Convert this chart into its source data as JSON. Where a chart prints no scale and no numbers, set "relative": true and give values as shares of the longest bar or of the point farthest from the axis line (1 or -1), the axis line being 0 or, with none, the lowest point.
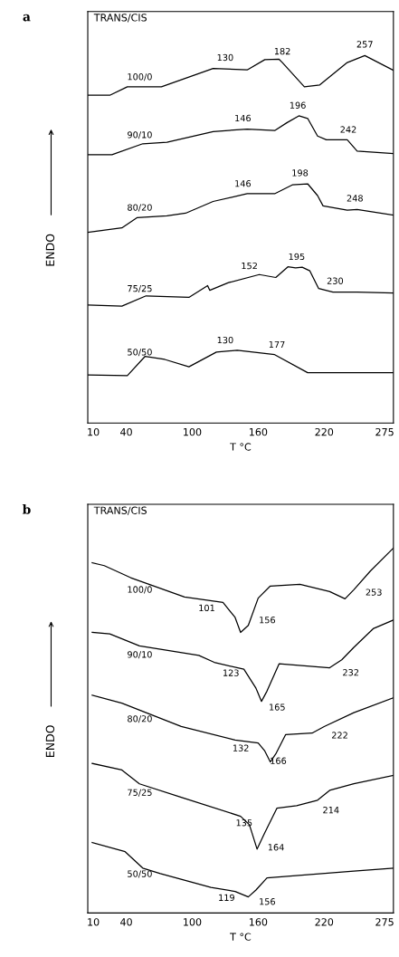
{
  "chart_data": [
    {
      "type": "line",
      "title": "a",
      "xlabel": "T °C",
      "ylabel": "ENDO",
      "relative": true,
      "legend": false,
      "grid": false,
      "xlim": [
        5,
        283
      ],
      "xticks": [
        10,
        40,
        100,
        160,
        220,
        275
      ],
      "series": [
        {
          "name": "100/0",
          "color": "#000000",
          "x": [
            5,
            25,
            41,
            72,
            119,
            150,
            166,
            179,
            182,
            202,
            216,
            241,
            257,
            283
          ],
          "values": [
            0.892,
            0.892,
            0.915,
            0.915,
            0.965,
            0.961,
            0.989,
            0.99,
            0.981,
            0.915,
            0.92,
            0.981,
            1.0,
            0.96
          ]
        },
        {
          "name": "90/10",
          "color": "#000000",
          "x": [
            5,
            27,
            55,
            77,
            119,
            150,
            175,
            186,
            197,
            205,
            214,
            222,
            241,
            250,
            283
          ],
          "values": [
            0.73,
            0.73,
            0.76,
            0.764,
            0.793,
            0.8,
            0.796,
            0.817,
            0.836,
            0.829,
            0.781,
            0.771,
            0.771,
            0.74,
            0.733
          ]
        },
        {
          "name": "80/20",
          "color": "#000000",
          "x": [
            5,
            36,
            50,
            77,
            94,
            119,
            150,
            175,
            191,
            205,
            214,
            219,
            241,
            250,
            283
          ],
          "values": [
            0.519,
            0.531,
            0.559,
            0.564,
            0.571,
            0.603,
            0.624,
            0.624,
            0.648,
            0.651,
            0.619,
            0.591,
            0.579,
            0.581,
            0.566
          ]
        },
        {
          "name": "75/25",
          "color": "#000000",
          "x": [
            5,
            36,
            58,
            97,
            114,
            116,
            133,
            161,
            176,
            187,
            194,
            200,
            207,
            215,
            228,
            250,
            283
          ],
          "values": [
            0.321,
            0.318,
            0.346,
            0.342,
            0.374,
            0.361,
            0.382,
            0.404,
            0.396,
            0.425,
            0.422,
            0.424,
            0.414,
            0.366,
            0.356,
            0.356,
            0.354
          ]
        },
        {
          "name": "50/50",
          "color": "#000000",
          "x": [
            5,
            41,
            57,
            75,
            97,
            122,
            141,
            175,
            205,
            250,
            283
          ],
          "values": [
            0.131,
            0.129,
            0.181,
            0.173,
            0.153,
            0.193,
            0.198,
            0.186,
            0.137,
            0.137,
            0.137
          ]
        }
      ],
      "annotations": [
        "TRANS/CIS",
        {
          "text": "130",
          "x": 130,
          "y": 0.964
        },
        {
          "text": "182",
          "x": 182,
          "y": 0.981
        },
        {
          "text": "257",
          "x": 257,
          "y": 1.0
        },
        {
          "text": "146",
          "x": 146,
          "y": 0.799
        },
        {
          "text": "196",
          "x": 196,
          "y": 0.834
        },
        {
          "text": "242",
          "x": 242,
          "y": 0.768
        },
        {
          "text": "146",
          "x": 146,
          "y": 0.621
        },
        {
          "text": "198",
          "x": 198,
          "y": 0.65
        },
        {
          "text": "248",
          "x": 248,
          "y": 0.581
        },
        {
          "text": "152",
          "x": 152,
          "y": 0.397
        },
        {
          "text": "195",
          "x": 195,
          "y": 0.422
        },
        {
          "text": "230",
          "x": 230,
          "y": 0.356
        },
        {
          "text": "130",
          "x": 130,
          "y": 0.195
        },
        {
          "text": "177",
          "x": 177,
          "y": 0.183
        }
      ]
    },
    {
      "type": "line",
      "title": "b",
      "xlabel": "T °C",
      "ylabel": "ENDO",
      "relative": true,
      "legend": false,
      "grid": false,
      "xlim": [
        5,
        283
      ],
      "xticks": [
        10,
        40,
        100,
        160,
        220,
        275
      ],
      "series": [
        {
          "name": "100/0",
          "color": "#000000",
          "x": [
            9,
            20,
            44,
            93,
            128,
            139,
            144,
            151,
            160,
            171,
            198,
            225,
            239,
            247,
            262,
            283
          ],
          "values": [
            0.96,
            0.952,
            0.919,
            0.866,
            0.851,
            0.81,
            0.769,
            0.788,
            0.863,
            0.896,
            0.901,
            0.881,
            0.861,
            0.886,
            0.937,
            1.0
          ]
        },
        {
          "name": "90/10",
          "color": "#000000",
          "x": [
            9,
            25,
            52,
            106,
            120,
            147,
            158,
            163,
            168,
            179,
            225,
            236,
            247,
            265,
            283
          ],
          "values": [
            0.769,
            0.765,
            0.732,
            0.706,
            0.687,
            0.668,
            0.616,
            0.58,
            0.608,
            0.683,
            0.672,
            0.694,
            0.728,
            0.78,
            0.803
          ]
        },
        {
          "name": "80/20",
          "color": "#000000",
          "x": [
            9,
            36,
            90,
            139,
            160,
            166,
            171,
            176,
            185,
            209,
            220,
            247,
            283
          ],
          "values": [
            0.597,
            0.575,
            0.511,
            0.474,
            0.466,
            0.444,
            0.414,
            0.436,
            0.489,
            0.493,
            0.511,
            0.549,
            0.59
          ]
        },
        {
          "name": "75/25",
          "color": "#000000",
          "x": [
            9,
            36,
            52,
            90,
            144,
            152,
            159,
            166,
            177,
            195,
            214,
            225,
            247,
            283
          ],
          "values": [
            0.41,
            0.392,
            0.354,
            0.317,
            0.265,
            0.242,
            0.175,
            0.22,
            0.287,
            0.294,
            0.309,
            0.336,
            0.354,
            0.377
          ]
        },
        {
          "name": "50/50",
          "color": "#000000",
          "x": [
            9,
            39,
            55,
            71,
            117,
            139,
            151,
            158,
            168,
            247,
            283
          ],
          "values": [
            0.193,
            0.168,
            0.123,
            0.108,
            0.07,
            0.059,
            0.044,
            0.063,
            0.096,
            0.115,
            0.123
          ]
        }
      ],
      "annotations": [
        "TRANS/CIS",
        {
          "text": "101",
          "x": 101,
          "y": 0.863
        },
        {
          "text": "156",
          "x": 156,
          "y": 0.83
        },
        {
          "text": "253",
          "x": 253,
          "y": 0.906
        },
        {
          "text": "123",
          "x": 123,
          "y": 0.685
        },
        {
          "text": "165",
          "x": 165,
          "y": 0.591
        },
        {
          "text": "232",
          "x": 232,
          "y": 0.686
        },
        {
          "text": "132",
          "x": 132,
          "y": 0.479
        },
        {
          "text": "166",
          "x": 166,
          "y": 0.444
        },
        {
          "text": "222",
          "x": 222,
          "y": 0.514
        },
        {
          "text": "135",
          "x": 135,
          "y": 0.274
        },
        {
          "text": "164",
          "x": 164,
          "y": 0.207
        },
        {
          "text": "214",
          "x": 214,
          "y": 0.309
        },
        {
          "text": "119",
          "x": 119,
          "y": 0.069
        },
        {
          "text": "156",
          "x": 156,
          "y": 0.058
        }
      ]
    }
  ]
}
